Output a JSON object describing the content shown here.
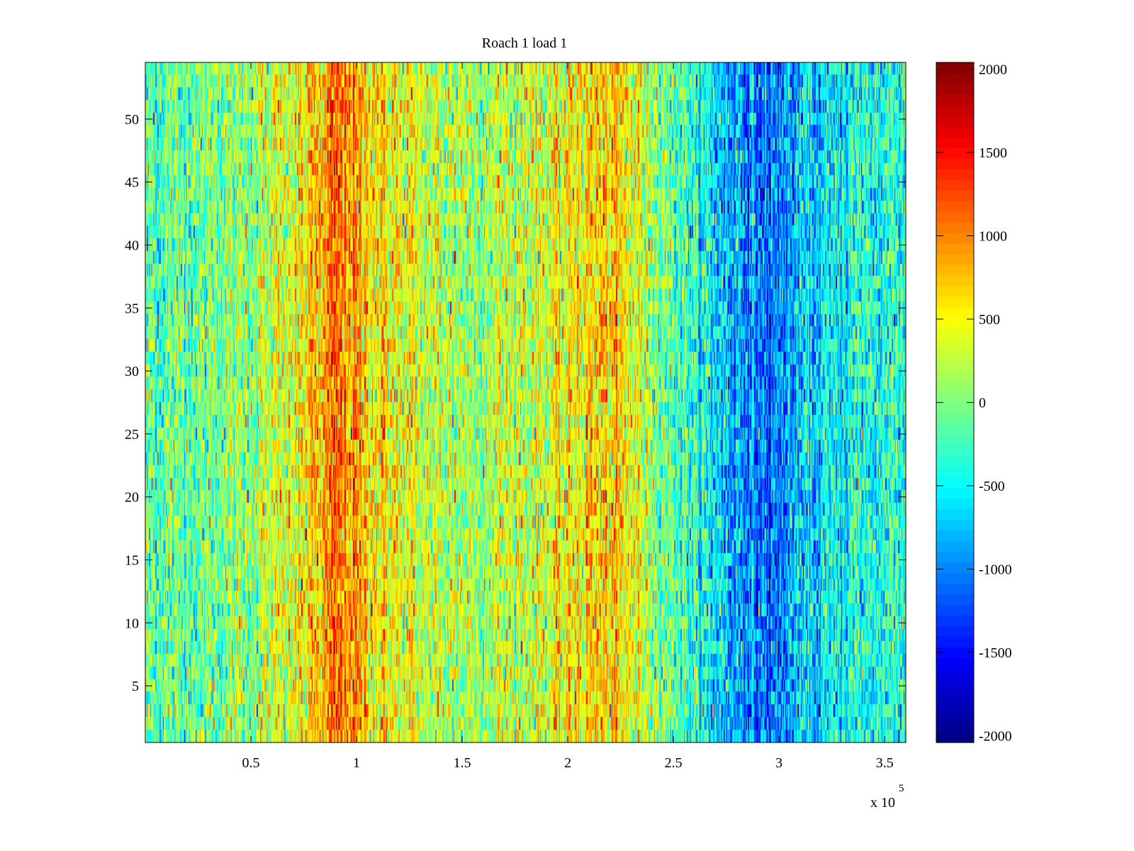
{
  "chart_data": {
    "type": "heatmap",
    "title": "Roach 1 load 1",
    "xlabel": "",
    "ylabel": "",
    "x_exponent_label": "x 10",
    "x_exponent": "5",
    "xlim": [
      0,
      360000
    ],
    "ylim": [
      0.5,
      54.5
    ],
    "rows": 54,
    "columns": 720,
    "x_ticks": [
      {
        "value": 50000,
        "label": "0.5"
      },
      {
        "value": 100000,
        "label": "1"
      },
      {
        "value": 150000,
        "label": "1.5"
      },
      {
        "value": 200000,
        "label": "2"
      },
      {
        "value": 250000,
        "label": "2.5"
      },
      {
        "value": 300000,
        "label": "3"
      },
      {
        "value": 350000,
        "label": "3.5"
      }
    ],
    "y_ticks": [
      {
        "value": 5,
        "label": "5"
      },
      {
        "value": 10,
        "label": "10"
      },
      {
        "value": 15,
        "label": "15"
      },
      {
        "value": 20,
        "label": "20"
      },
      {
        "value": 25,
        "label": "25"
      },
      {
        "value": 30,
        "label": "30"
      },
      {
        "value": 35,
        "label": "35"
      },
      {
        "value": 40,
        "label": "40"
      },
      {
        "value": 45,
        "label": "45"
      },
      {
        "value": 50,
        "label": "50"
      }
    ],
    "colormap": "jet",
    "clim": [
      -2040,
      2040
    ],
    "colorbar_ticks": [
      {
        "value": 2000,
        "label": "2000"
      },
      {
        "value": 1500,
        "label": "1500"
      },
      {
        "value": 1000,
        "label": "1000"
      },
      {
        "value": 500,
        "label": "500"
      },
      {
        "value": 0,
        "label": "0"
      },
      {
        "value": -500,
        "label": "-500"
      },
      {
        "value": -1000,
        "label": "-1000"
      },
      {
        "value": -1500,
        "label": "-1500"
      },
      {
        "value": -2000,
        "label": "-2000"
      }
    ],
    "column_mean_profile": {
      "x": [
        0,
        30000,
        50000,
        70000,
        80000,
        88000,
        95000,
        105000,
        120000,
        150000,
        180000,
        200000,
        215000,
        225000,
        240000,
        255000,
        270000,
        285000,
        295000,
        310000,
        330000,
        360000
      ],
      "value": [
        -150,
        -50,
        100,
        350,
        650,
        1000,
        950,
        700,
        400,
        150,
        300,
        450,
        650,
        550,
        200,
        -250,
        -650,
        -900,
        -1150,
        -800,
        -500,
        -300
      ]
    },
    "noise_std": 380
  }
}
